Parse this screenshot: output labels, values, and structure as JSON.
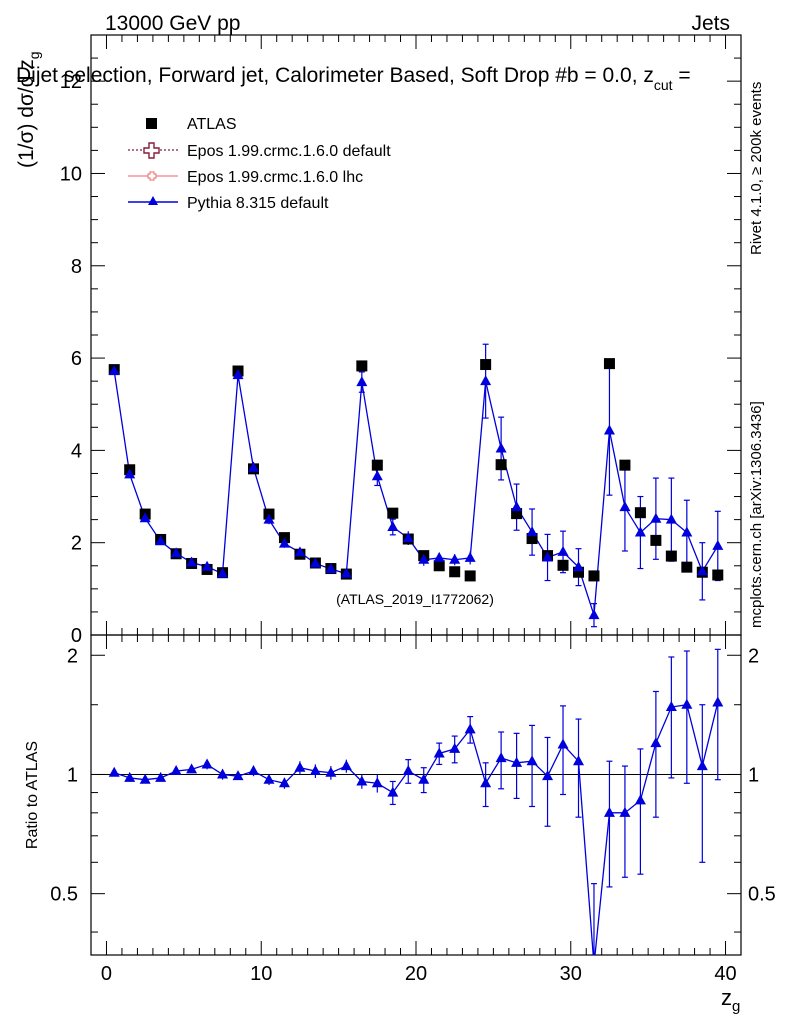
{
  "header": {
    "left": "13000 GeV pp",
    "right": "Jets",
    "title": "Dijet selection, Forward jet, Calorimeter Based, Soft Drop #b = 0.0, z",
    "title_sub": "cut",
    "title_tail": " ="
  },
  "side": {
    "rivet": "Rivet 4.1.0, ≥ 200k events",
    "mcplots": "mcplots.cern.ch [arXiv:1306.3436]"
  },
  "watermark": "(ATLAS_2019_I1772062)",
  "colors": {
    "atlas": "#000000",
    "epos_default": "#8b1a3c",
    "epos_lhc": "#f08080",
    "pythia": "#0000dd",
    "watermark": "#999999",
    "side_text": "#808080"
  },
  "legend": [
    {
      "label": "ATLAS",
      "marker": "square-icon"
    },
    {
      "label": "Epos 1.99.crmc.1.6.0 default",
      "marker": "open-cross-icon"
    },
    {
      "label": "Epos 1.99.crmc.1.6.0 lhc",
      "marker": "small-cross-icon"
    },
    {
      "label": "Pythia 8.315 default",
      "marker": "triangle-icon"
    }
  ],
  "chart_data": [
    {
      "type": "scatter",
      "panel": "main",
      "ylabel": "(1/σ) dσ/d z_g",
      "ylabel_parts": [
        "(1/σ) dσ/d z",
        "g"
      ],
      "xlim": [
        -1,
        41
      ],
      "ylim": [
        0,
        13
      ],
      "yticks": [
        0,
        2,
        4,
        6,
        8,
        10,
        12
      ],
      "ytick_labels": [
        "0",
        "2",
        "4",
        "6",
        "8",
        "10",
        "12"
      ],
      "x": [
        0.5,
        1.5,
        2.5,
        3.5,
        4.5,
        5.5,
        6.5,
        7.5,
        8.5,
        9.5,
        10.5,
        11.5,
        12.5,
        13.5,
        14.5,
        15.5,
        16.5,
        17.5,
        18.5,
        19.5,
        20.5,
        21.5,
        22.5,
        23.5,
        24.5,
        25.5,
        26.5,
        27.5,
        28.5,
        29.5,
        30.5,
        31.5,
        32.5,
        33.5,
        34.5,
        35.5,
        36.5,
        37.5,
        38.5,
        39.5
      ],
      "series": [
        {
          "name": "ATLAS",
          "values": [
            5.75,
            3.58,
            2.62,
            2.07,
            1.76,
            1.55,
            1.42,
            1.35,
            5.72,
            3.6,
            2.62,
            2.11,
            1.75,
            1.56,
            1.44,
            1.32,
            5.83,
            3.68,
            2.64,
            2.08,
            1.72,
            1.5,
            1.37,
            1.28,
            5.86,
            3.69,
            2.63,
            2.09,
            1.72,
            1.51,
            1.36,
            1.28,
            5.88,
            3.68,
            2.65,
            2.05,
            1.71,
            1.47,
            1.36,
            1.3
          ]
        },
        {
          "name": "Pythia 8.315 default",
          "values": [
            5.72,
            3.48,
            2.53,
            2.03,
            1.77,
            1.57,
            1.48,
            1.33,
            5.63,
            3.62,
            2.5,
            1.98,
            1.79,
            1.55,
            1.43,
            1.33,
            5.48,
            3.44,
            2.34,
            2.1,
            1.63,
            1.67,
            1.63,
            1.67,
            5.5,
            4.04,
            2.77,
            2.23,
            1.68,
            1.8,
            1.47,
            0.43,
            4.43,
            2.77,
            2.22,
            2.52,
            2.5,
            2.22,
            1.38,
            1.93
          ],
          "errors": [
            0.03,
            0.05,
            0.06,
            0.06,
            0.06,
            0.06,
            0.06,
            0.06,
            0.12,
            0.13,
            0.1,
            0.09,
            0.08,
            0.08,
            0.08,
            0.08,
            0.22,
            0.2,
            0.17,
            0.15,
            0.13,
            0.1,
            0.12,
            0.14,
            0.8,
            0.68,
            0.5,
            0.5,
            0.5,
            0.45,
            0.4,
            0.25,
            1.4,
            0.95,
            0.78,
            0.88,
            0.9,
            0.7,
            0.62,
            0.75
          ]
        }
      ]
    },
    {
      "type": "scatter",
      "panel": "ratio",
      "ylabel": "Ratio to ATLAS",
      "xlabel": "z_g",
      "xlabel_parts": [
        "z",
        "g"
      ],
      "xlim": [
        -1,
        41
      ],
      "ylim": [
        0.35,
        2.25
      ],
      "yscale": "log",
      "yticks": [
        0.5,
        1,
        2
      ],
      "ytick_labels": [
        "0.5",
        "1",
        "2"
      ],
      "xticks": [
        0,
        10,
        20,
        30,
        40
      ],
      "xtick_labels": [
        "0",
        "10",
        "20",
        "30",
        "40"
      ],
      "x": [
        0.5,
        1.5,
        2.5,
        3.5,
        4.5,
        5.5,
        6.5,
        7.5,
        8.5,
        9.5,
        10.5,
        11.5,
        12.5,
        13.5,
        14.5,
        15.5,
        16.5,
        17.5,
        18.5,
        19.5,
        20.5,
        21.5,
        22.5,
        23.5,
        24.5,
        25.5,
        26.5,
        27.5,
        28.5,
        29.5,
        30.5,
        31.5,
        32.5,
        33.5,
        34.5,
        35.5,
        36.5,
        37.5,
        38.5,
        39.5
      ],
      "series": [
        {
          "name": "Pythia 8.315 default",
          "values": [
            1.01,
            0.98,
            0.97,
            0.98,
            1.02,
            1.03,
            1.06,
            1.0,
            0.99,
            1.02,
            0.97,
            0.95,
            1.04,
            1.02,
            1.01,
            1.05,
            0.96,
            0.95,
            0.9,
            1.02,
            0.97,
            1.13,
            1.16,
            1.3,
            0.95,
            1.1,
            1.07,
            1.08,
            0.99,
            1.19,
            1.08,
            0.33,
            0.8,
            0.8,
            0.86,
            1.2,
            1.48,
            1.5,
            1.05,
            1.52
          ],
          "errors": [
            0.01,
            0.02,
            0.02,
            0.02,
            0.02,
            0.02,
            0.03,
            0.03,
            0.02,
            0.03,
            0.03,
            0.03,
            0.04,
            0.04,
            0.04,
            0.04,
            0.04,
            0.05,
            0.06,
            0.07,
            0.07,
            0.07,
            0.09,
            0.1,
            0.12,
            0.18,
            0.2,
            0.25,
            0.25,
            0.3,
            0.3,
            0.2,
            0.28,
            0.25,
            0.3,
            0.42,
            0.5,
            0.55,
            0.45,
            0.55
          ]
        }
      ]
    }
  ]
}
